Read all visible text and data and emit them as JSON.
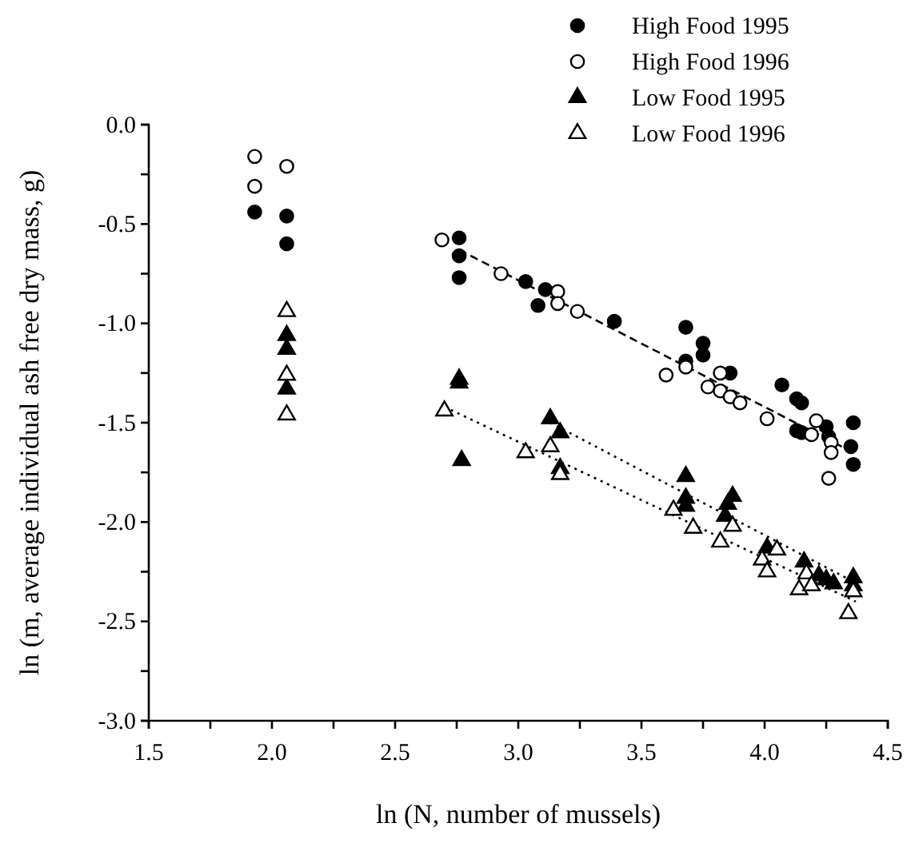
{
  "chart_data": {
    "type": "scatter",
    "xlabel": "ln (N, number of mussels)",
    "ylabel": "ln (m, average individual ash free dry mass, g)",
    "xlim": [
      1.5,
      4.5
    ],
    "xticks": [
      {
        "value": 1.5,
        "label": "1.5"
      },
      {
        "value": 1.75,
        "label": null
      },
      {
        "value": 2.0,
        "label": "2.0"
      },
      {
        "value": 2.25,
        "label": null
      },
      {
        "value": 2.5,
        "label": "2.5"
      },
      {
        "value": 2.75,
        "label": null
      },
      {
        "value": 3.0,
        "label": "3.0"
      },
      {
        "value": 3.25,
        "label": null
      },
      {
        "value": 3.5,
        "label": "3.5"
      },
      {
        "value": 3.75,
        "label": null
      },
      {
        "value": 4.0,
        "label": "4.0"
      },
      {
        "value": 4.25,
        "label": null
      },
      {
        "value": 4.5,
        "label": "4.5"
      }
    ],
    "ylim": [
      -3,
      0
    ],
    "yticks": [
      {
        "value": 0,
        "label": "0.0"
      },
      {
        "value": -0.25,
        "label": null
      },
      {
        "value": -0.5,
        "label": "-0.5"
      },
      {
        "value": -0.75,
        "label": null
      },
      {
        "value": -1,
        "label": "-1.0"
      },
      {
        "value": -1.25,
        "label": null
      },
      {
        "value": -1.5,
        "label": "-1.5"
      },
      {
        "value": -1.75,
        "label": null
      },
      {
        "value": -2,
        "label": "-2.0"
      },
      {
        "value": -2.25,
        "label": null
      },
      {
        "value": -2.5,
        "label": "-2.5"
      },
      {
        "value": -2.75,
        "label": null
      },
      {
        "value": -3,
        "label": "-3.0"
      }
    ],
    "grid": false,
    "legend": "top right",
    "series": [
      {
        "name": "High Food 1995",
        "color": "#000000",
        "marker": "circle",
        "x": [
          1.93,
          2.06,
          2.06,
          2.76,
          2.76,
          2.76,
          3.03,
          3.08,
          3.11,
          3.39,
          3.68,
          3.75,
          3.75,
          3.68,
          3.86,
          4.07,
          4.13,
          4.15,
          4.36,
          4.13,
          4.15,
          4.25,
          4.26,
          4.35,
          4.36
        ],
        "values": [
          -0.44,
          -0.46,
          -0.6,
          -0.57,
          -0.66,
          -0.77,
          -0.79,
          -0.91,
          -0.83,
          -0.99,
          -1.02,
          -1.1,
          -1.16,
          -1.19,
          -1.25,
          -1.31,
          -1.38,
          -1.4,
          -1.5,
          -1.54,
          -1.55,
          -1.52,
          -1.57,
          -1.62,
          -1.71
        ]
      },
      {
        "name": "High Food 1996",
        "color": "#ffffff",
        "marker": "circle",
        "x": [
          1.93,
          1.93,
          2.06,
          2.69,
          2.93,
          3.16,
          3.16,
          3.24,
          3.68,
          3.6,
          3.82,
          3.77,
          3.82,
          3.86,
          3.9,
          4.01,
          4.21,
          4.19,
          4.27,
          4.27,
          4.26
        ],
        "values": [
          -0.16,
          -0.31,
          -0.21,
          -0.58,
          -0.75,
          -0.84,
          -0.9,
          -0.94,
          -1.22,
          -1.26,
          -1.25,
          -1.32,
          -1.34,
          -1.37,
          -1.4,
          -1.48,
          -1.49,
          -1.56,
          -1.6,
          -1.65,
          -1.78
        ]
      },
      {
        "name": "Low Food 1995",
        "color": "#000000",
        "marker": "triangle",
        "x": [
          2.06,
          2.06,
          2.06,
          2.76,
          2.76,
          2.77,
          3.13,
          3.17,
          3.17,
          3.68,
          3.68,
          3.68,
          3.87,
          3.85,
          3.84,
          4.01,
          4.16,
          4.22,
          4.25,
          4.28,
          4.36,
          4.36
        ],
        "values": [
          -1.06,
          -1.13,
          -1.33,
          -1.28,
          -1.3,
          -1.69,
          -1.48,
          -1.55,
          -1.73,
          -1.77,
          -1.88,
          -1.92,
          -1.87,
          -1.91,
          -1.97,
          -2.13,
          -2.2,
          -2.27,
          -2.29,
          -2.31,
          -2.28,
          -2.32
        ]
      },
      {
        "name": "Low Food 1996",
        "color": "#ffffff",
        "marker": "triangle",
        "x": [
          2.06,
          2.06,
          2.06,
          2.7,
          3.03,
          3.13,
          3.17,
          3.63,
          3.71,
          3.87,
          3.82,
          4.05,
          3.99,
          4.01,
          4.17,
          4.14,
          4.19,
          4.36,
          4.34
        ],
        "values": [
          -0.94,
          -1.26,
          -1.46,
          -1.44,
          -1.65,
          -1.62,
          -1.76,
          -1.94,
          -2.03,
          -2.02,
          -2.1,
          -2.14,
          -2.19,
          -2.25,
          -2.26,
          -2.34,
          -2.32,
          -2.35,
          -2.46
        ]
      },
      {
        "type": "line",
        "color": "#000000",
        "line_style": "dashed",
        "x": [
          2.76,
          4.36
        ],
        "values": [
          -0.63,
          -1.65
        ]
      },
      {
        "type": "line",
        "color": "#000000",
        "line_style": "dotted",
        "x": [
          2.7,
          4.37
        ],
        "values": [
          -1.42,
          -2.4
        ]
      },
      {
        "type": "line",
        "color": "#000000",
        "line_style": "dotted",
        "x": [
          3.13,
          4.36
        ],
        "values": [
          -1.5,
          -2.3
        ]
      }
    ]
  }
}
